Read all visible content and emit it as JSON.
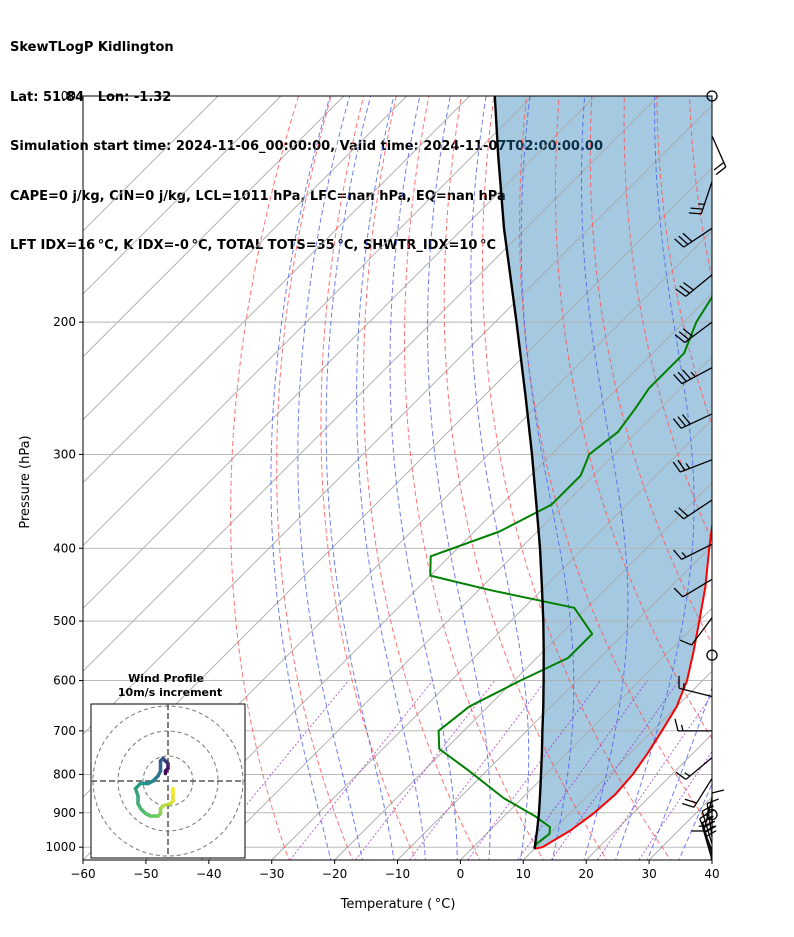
{
  "header": {
    "line1": "SkewTLogP Kidlington",
    "line2": "Lat: 51.84   Lon: -1.32",
    "line3": "Simulation start time: 2024-11-06_00:00:00, Valid time: 2024-11-07T02:00:00.00",
    "line4": "CAPE=0 j/kg, CIN=0 j/kg, LCL=1011 hPa, LFC=nan hPa, EQ=nan hPa",
    "line5": "LFT IDX=16 °C, K IDX=-0 °C, TOTAL TOTS=35 °C, SHWTR_IDX=10 °C"
  },
  "chart_data": {
    "type": "line",
    "xlabel": "Temperature ( °C)",
    "ylabel": "Pressure (hPa)",
    "xlim": [
      -60,
      40
    ],
    "ylim": [
      1040,
      100
    ],
    "yscale": "log",
    "skew": true,
    "grid": true,
    "x_ticks": [
      -60,
      -50,
      -40,
      -30,
      -20,
      -10,
      0,
      10,
      20,
      30,
      40
    ],
    "y_ticks": [
      1000,
      900,
      800,
      700,
      600,
      500,
      400,
      300,
      200,
      100
    ],
    "series": [
      {
        "color": "#ff0000",
        "points": [
          [
            1005,
            10.0
          ],
          [
            1000,
            11.0
          ],
          [
            950,
            12.8
          ],
          [
            900,
            13.8
          ],
          [
            850,
            14.2
          ],
          [
            800,
            13.8
          ],
          [
            750,
            12.8
          ],
          [
            700,
            11.5
          ],
          [
            650,
            10.0
          ],
          [
            600,
            7.5
          ],
          [
            550,
            4.0
          ],
          [
            500,
            0.0
          ],
          [
            450,
            -4.5
          ],
          [
            400,
            -10.0
          ],
          [
            350,
            -16.0
          ],
          [
            300,
            -24.0
          ],
          [
            270,
            -29.0
          ],
          [
            250,
            -33.0
          ],
          [
            220,
            -39.5
          ],
          [
            200,
            -44.5
          ],
          [
            180,
            -48.0
          ],
          [
            165,
            -52.0
          ],
          [
            150,
            -57.5
          ],
          [
            135,
            -63.0
          ],
          [
            125,
            -67.0
          ],
          [
            112,
            -71.0
          ],
          [
            100,
            -75.0
          ]
        ]
      },
      {
        "color": "#008000",
        "points": [
          [
            1005,
            10.0
          ],
          [
            990,
            9.5
          ],
          [
            960,
            10.0
          ],
          [
            940,
            9.0
          ],
          [
            910,
            5.0
          ],
          [
            860,
            -3.0
          ],
          [
            790,
            -13.0
          ],
          [
            740,
            -21.0
          ],
          [
            700,
            -24.0
          ],
          [
            650,
            -23.0
          ],
          [
            600,
            -19.0
          ],
          [
            560,
            -15.0
          ],
          [
            520,
            -15.0
          ],
          [
            480,
            -22.0
          ],
          [
            455,
            -38.0
          ],
          [
            435,
            -50.0
          ],
          [
            410,
            -53.0
          ],
          [
            380,
            -46.0
          ],
          [
            350,
            -42.0
          ],
          [
            320,
            -42.0
          ],
          [
            300,
            -44.0
          ],
          [
            280,
            -43.0
          ],
          [
            260,
            -44.0
          ],
          [
            245,
            -45.0
          ],
          [
            220,
            -45.0
          ],
          [
            200,
            -48.0
          ],
          [
            185,
            -49.5
          ],
          [
            170,
            -48.0
          ],
          [
            155,
            -48.0
          ],
          [
            143,
            -51.0
          ],
          [
            135,
            -55.0
          ],
          [
            125,
            -59.0
          ],
          [
            110,
            -59.0
          ],
          [
            100,
            -61.0
          ]
        ]
      },
      {
        "color": "#000000",
        "points": [
          [
            1005,
            10.0
          ],
          [
            950,
            7.5
          ],
          [
            900,
            5.0
          ],
          [
            850,
            2.2
          ],
          [
            800,
            -0.8
          ],
          [
            750,
            -4.0
          ],
          [
            700,
            -7.5
          ],
          [
            650,
            -11.2
          ],
          [
            600,
            -15.3
          ],
          [
            550,
            -19.8
          ],
          [
            500,
            -24.8
          ],
          [
            450,
            -30.5
          ],
          [
            400,
            -36.9
          ],
          [
            350,
            -44.4
          ],
          [
            300,
            -53.1
          ],
          [
            250,
            -63.6
          ],
          [
            200,
            -76.6
          ],
          [
            150,
            -93.5
          ],
          [
            120,
            -106.0
          ],
          [
            100,
            -116.0
          ]
        ]
      }
    ],
    "shaded": {
      "color": "#1f77b4"
    },
    "wind_barbs": [
      {
        "p": 1040,
        "u": 4,
        "v": -14
      },
      {
        "p": 1025,
        "u": 4,
        "v": -14
      },
      {
        "p": 1010,
        "u": 5,
        "v": -13
      },
      {
        "p": 990,
        "u": 3,
        "v": -10
      },
      {
        "p": 970,
        "u": 1,
        "v": -7
      },
      {
        "p": 940,
        "u": 0,
        "v": -5
      },
      {
        "p": 905,
        "u": 0,
        "v": 0
      },
      {
        "p": 860,
        "u": 2,
        "v": 8
      },
      {
        "p": 810,
        "u": 5,
        "v": 8
      },
      {
        "p": 760,
        "u": 6,
        "v": 5
      },
      {
        "p": 700,
        "u": 7,
        "v": 0
      },
      {
        "p": 630,
        "u": 8,
        "v": -2
      },
      {
        "p": 555,
        "u": 0,
        "v": 0
      },
      {
        "p": 495,
        "u": 3,
        "v": 4
      },
      {
        "p": 440,
        "u": 5,
        "v": 3
      },
      {
        "p": 395,
        "u": 8,
        "v": 4
      },
      {
        "p": 345,
        "u": 9,
        "v": 6
      },
      {
        "p": 305,
        "u": 13,
        "v": 5
      },
      {
        "p": 265,
        "u": 15,
        "v": 7
      },
      {
        "p": 230,
        "u": 15,
        "v": 8
      },
      {
        "p": 200,
        "u": 12,
        "v": 9
      },
      {
        "p": 173,
        "u": 11,
        "v": 9
      },
      {
        "p": 150,
        "u": 12,
        "v": 8
      },
      {
        "p": 130,
        "u": 4,
        "v": 12
      },
      {
        "p": 113,
        "u": -4,
        "v": 9
      },
      {
        "p": 100,
        "u": 0,
        "v": 0
      }
    ],
    "hodograph": {
      "title": "Wind Profile",
      "subtitle": "10m/s increment",
      "points": [
        [
          -1,
          3
        ],
        [
          -1,
          4
        ],
        [
          0,
          5
        ],
        [
          0,
          6
        ],
        [
          0,
          7
        ],
        [
          -1,
          8
        ],
        [
          -2,
          9
        ],
        [
          -2,
          9
        ],
        [
          -3,
          8
        ],
        [
          -3,
          6
        ],
        [
          -3,
          4
        ],
        [
          -4,
          2
        ],
        [
          -5,
          1
        ],
        [
          -6,
          0
        ],
        [
          -8,
          -1
        ],
        [
          -11,
          -1
        ],
        [
          -13,
          -3
        ],
        [
          -12,
          -6
        ],
        [
          -12,
          -9
        ],
        [
          -11,
          -11
        ],
        [
          -9,
          -13
        ],
        [
          -7,
          -14
        ],
        [
          -4,
          -14
        ],
        [
          -3,
          -13
        ],
        [
          -3,
          -11
        ],
        [
          -2,
          -10
        ],
        [
          1,
          -9
        ],
        [
          2,
          -8
        ],
        [
          2,
          -5
        ],
        [
          2,
          -3
        ]
      ],
      "rings": [
        10,
        20,
        30
      ]
    }
  }
}
